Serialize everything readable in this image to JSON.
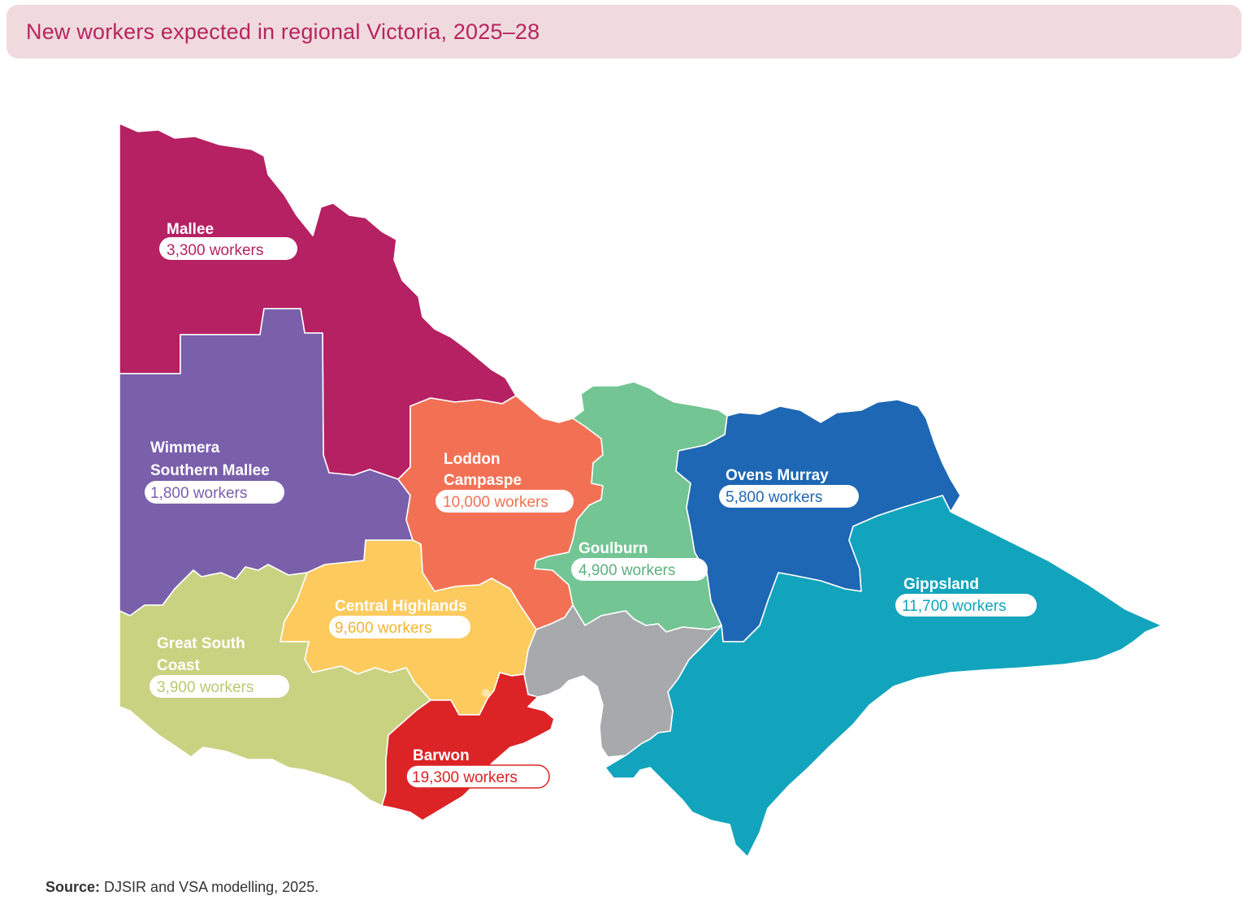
{
  "title": "New workers expected in regional Victoria, 2025–28",
  "source": {
    "label": "Source:",
    "text": "DJSIR and VSA modelling, 2025."
  },
  "colors": {
    "title": "#b8245f",
    "title_bg": "#f0dade",
    "mallee": "#b52162",
    "wimmera": "#7a5fab",
    "loddon": "#f27155",
    "goulburn": "#73c593",
    "ovens": "#1e67b4",
    "gippsland": "#12a4bd",
    "central": "#fdca5e",
    "greatsouth": "#c8d281",
    "barwon": "#dc2326",
    "melbourne": "#a7a9ac"
  },
  "regions": [
    {
      "id": "mallee",
      "name": "Mallee",
      "workers": 3300,
      "workers_label": "3,300 workers"
    },
    {
      "id": "wimmera",
      "name": "Wimmera Southern Mallee",
      "name_lines": [
        "Wimmera",
        "Southern Mallee"
      ],
      "workers": 1800,
      "workers_label": "1,800 workers"
    },
    {
      "id": "loddon",
      "name": "Loddon Campaspe",
      "name_lines": [
        "Loddon",
        "Campaspe"
      ],
      "workers": 10000,
      "workers_label": "10,000 workers"
    },
    {
      "id": "goulburn",
      "name": "Goulburn",
      "workers": 4900,
      "workers_label": "4,900 workers"
    },
    {
      "id": "ovens",
      "name": "Ovens Murray",
      "workers": 5800,
      "workers_label": "5,800 workers"
    },
    {
      "id": "gippsland",
      "name": "Gippsland",
      "workers": 11700,
      "workers_label": "11,700 workers"
    },
    {
      "id": "central",
      "name": "Central Highlands",
      "workers": 9600,
      "workers_label": "9,600 workers"
    },
    {
      "id": "greatsouth",
      "name": "Great South Coast",
      "name_lines": [
        "Great South",
        "Coast"
      ],
      "workers": 3900,
      "workers_label": "3,900 workers"
    },
    {
      "id": "barwon",
      "name": "Barwon",
      "workers": 19300,
      "workers_label": "19,300 workers"
    }
  ]
}
